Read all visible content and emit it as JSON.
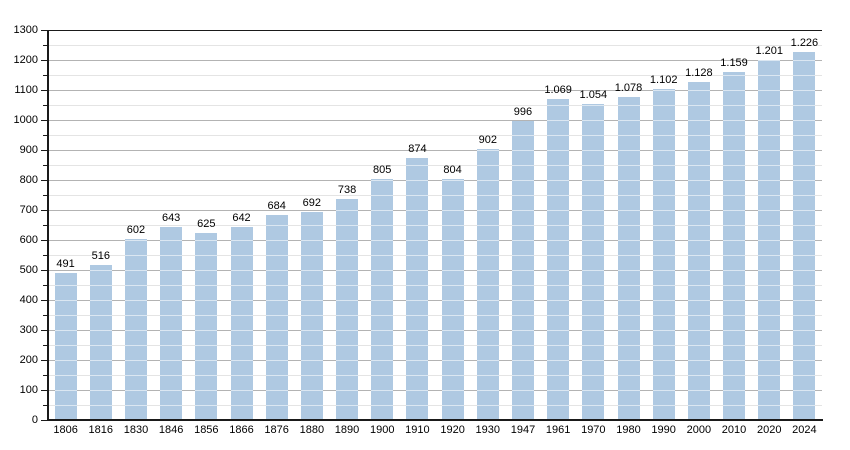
{
  "chart_data": {
    "type": "bar",
    "title": "",
    "xlabel": "",
    "ylabel": "",
    "categories": [
      "1806",
      "1816",
      "1830",
      "1846",
      "1856",
      "1866",
      "1876",
      "1880",
      "1890",
      "1900",
      "1910",
      "1920",
      "1930",
      "1947",
      "1961",
      "1970",
      "1980",
      "1990",
      "2000",
      "2010",
      "2020",
      "2024"
    ],
    "values": [
      491,
      516,
      602,
      643,
      625,
      642,
      684,
      692,
      738,
      805,
      874,
      804,
      902,
      996,
      1069,
      1054,
      1078,
      1102,
      1128,
      1159,
      1201,
      1226
    ],
    "value_labels": [
      "491",
      "516",
      "602",
      "643",
      "625",
      "642",
      "684",
      "692",
      "738",
      "805",
      "874",
      "804",
      "902",
      "996",
      "1.069",
      "1.054",
      "1.078",
      "1.102",
      "1.128",
      "1.159",
      "1.201",
      "1.226"
    ],
    "ylim": [
      0,
      1300
    ],
    "y_major_step": 100,
    "y_minor_step": 50,
    "y_tick_labels": [
      "0",
      "100",
      "200",
      "300",
      "400",
      "500",
      "600",
      "700",
      "800",
      "900",
      "1000",
      "1100",
      "1200",
      "1300"
    ],
    "grid": "horizontal major gray + minor light, top frame dark",
    "legend": "none",
    "bar_color": "#afc9e2",
    "bar_overlay_line_color": "rgba(255,255,255,0.55)",
    "major_grid_color": "#b3b3b3",
    "minor_grid_color": "#e4e4e4",
    "frame_color": "#1a1a1a",
    "text_color": "#000000"
  }
}
